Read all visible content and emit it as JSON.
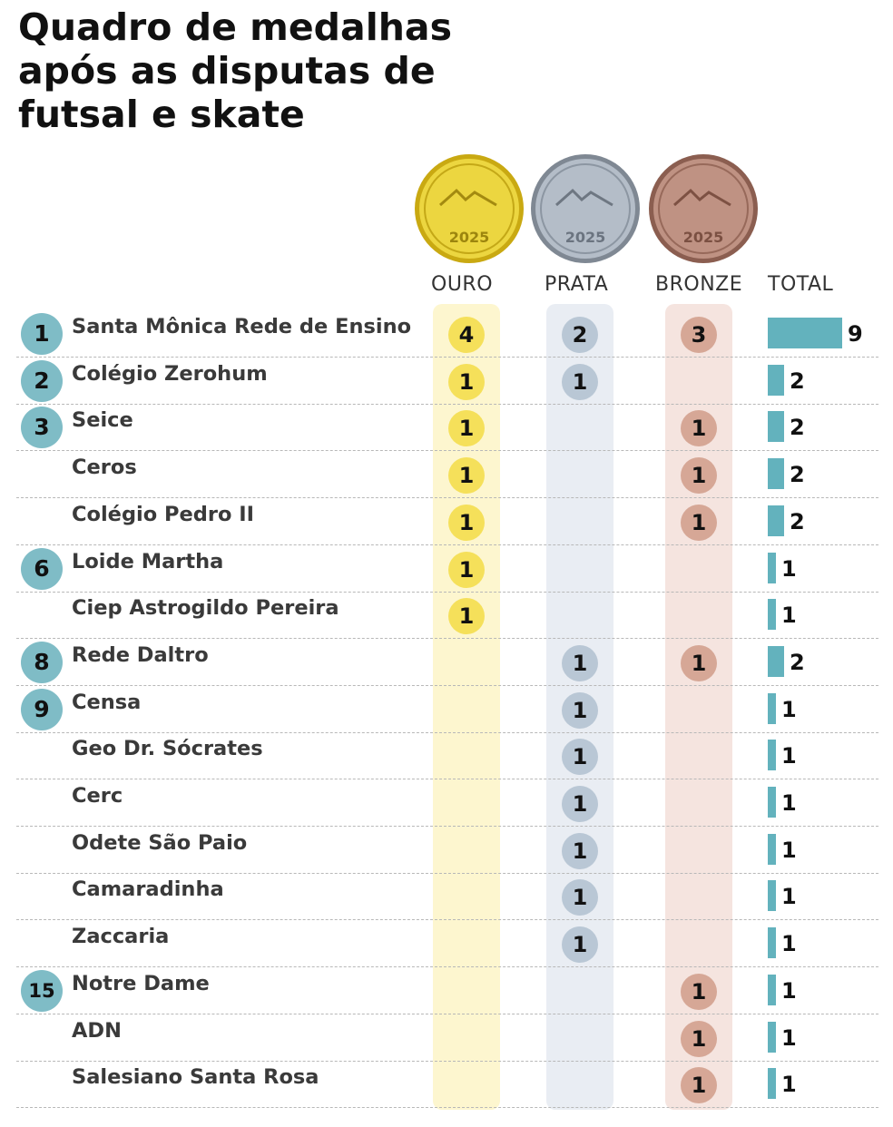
{
  "title": "Quadro de medalhas após as disputas de futsal e skate",
  "medal_art": {
    "year": "2025",
    "colors": {
      "gold": "#e9d23a",
      "silver": "#a9b3bf",
      "bronze": "#b9897a"
    }
  },
  "colors": {
    "total_bar": "#63b2bd",
    "rank_circle": "#7fbcc6"
  },
  "chart_data": {
    "type": "table",
    "columns": [
      "OURO",
      "PRATA",
      "BRONZE",
      "TOTAL"
    ],
    "rows": [
      {
        "rank": "1",
        "name": "Santa Mônica Rede de Ensino",
        "ouro": 4,
        "prata": 2,
        "bronze": 3,
        "total": 9
      },
      {
        "rank": "2",
        "name": "Colégio Zerohum",
        "ouro": 1,
        "prata": 1,
        "bronze": 0,
        "total": 2
      },
      {
        "rank": "3",
        "name": "Seice",
        "ouro": 1,
        "prata": 0,
        "bronze": 1,
        "total": 2
      },
      {
        "rank": "",
        "name": "Ceros",
        "ouro": 1,
        "prata": 0,
        "bronze": 1,
        "total": 2
      },
      {
        "rank": "",
        "name": "Colégio Pedro II",
        "ouro": 1,
        "prata": 0,
        "bronze": 1,
        "total": 2
      },
      {
        "rank": "6",
        "name": "Loide Martha",
        "ouro": 1,
        "prata": 0,
        "bronze": 0,
        "total": 1
      },
      {
        "rank": "",
        "name": "Ciep Astrogildo Pereira",
        "ouro": 1,
        "prata": 0,
        "bronze": 0,
        "total": 1
      },
      {
        "rank": "8",
        "name": "Rede Daltro",
        "ouro": 0,
        "prata": 1,
        "bronze": 1,
        "total": 2
      },
      {
        "rank": "9",
        "name": "Censa",
        "ouro": 0,
        "prata": 1,
        "bronze": 0,
        "total": 1
      },
      {
        "rank": "",
        "name": "Geo Dr. Sócrates",
        "ouro": 0,
        "prata": 1,
        "bronze": 0,
        "total": 1
      },
      {
        "rank": "",
        "name": "Cerc",
        "ouro": 0,
        "prata": 1,
        "bronze": 0,
        "total": 1
      },
      {
        "rank": "",
        "name": "Odete São Paio",
        "ouro": 0,
        "prata": 1,
        "bronze": 0,
        "total": 1
      },
      {
        "rank": "",
        "name": "Camaradinha",
        "ouro": 0,
        "prata": 1,
        "bronze": 0,
        "total": 1
      },
      {
        "rank": "",
        "name": "Zaccaria",
        "ouro": 0,
        "prata": 1,
        "bronze": 0,
        "total": 1
      },
      {
        "rank": "15",
        "name": "Notre Dame",
        "ouro": 0,
        "prata": 0,
        "bronze": 1,
        "total": 1
      },
      {
        "rank": "",
        "name": "ADN",
        "ouro": 0,
        "prata": 0,
        "bronze": 1,
        "total": 1
      },
      {
        "rank": "",
        "name": "Salesiano Santa Rosa",
        "ouro": 0,
        "prata": 0,
        "bronze": 1,
        "total": 1
      }
    ]
  }
}
